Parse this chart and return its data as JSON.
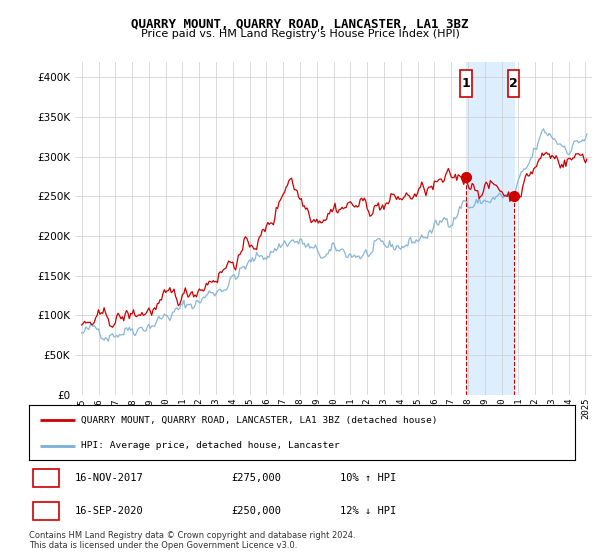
{
  "title": "QUARRY MOUNT, QUARRY ROAD, LANCASTER, LA1 3BZ",
  "subtitle": "Price paid vs. HM Land Registry's House Price Index (HPI)",
  "legend_line1": "QUARRY MOUNT, QUARRY ROAD, LANCASTER, LA1 3BZ (detached house)",
  "legend_line2": "HPI: Average price, detached house, Lancaster",
  "annotation1_label": "1",
  "annotation1_date": "16-NOV-2017",
  "annotation1_price": "£275,000",
  "annotation1_hpi": "10% ↑ HPI",
  "annotation2_label": "2",
  "annotation2_date": "16-SEP-2020",
  "annotation2_price": "£250,000",
  "annotation2_hpi": "12% ↓ HPI",
  "copyright": "Contains HM Land Registry data © Crown copyright and database right 2024.\nThis data is licensed under the Open Government Licence v3.0.",
  "red_color": "#cc0000",
  "blue_color": "#7bafd4",
  "highlight_color": "#ddeeff",
  "sale1_x": 2017.88,
  "sale1_y": 275000,
  "sale2_x": 2020.72,
  "sale2_y": 250000,
  "highlight_x_start": 2017.88,
  "highlight_x_end": 2020.72,
  "ylim_min": 0,
  "ylim_max": 420000,
  "yticks": [
    0,
    50000,
    100000,
    150000,
    200000,
    250000,
    300000,
    350000,
    400000
  ],
  "xlim_min": 1994.6,
  "xlim_max": 2025.4
}
